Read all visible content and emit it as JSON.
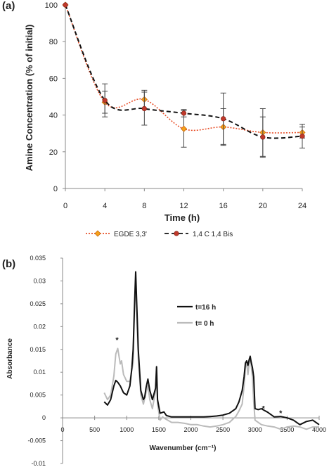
{
  "panel_a_label": "(a)",
  "panel_b_label": "(b)",
  "chart_data": [
    {
      "type": "line",
      "panel": "(a)",
      "xlabel": "Time (h)",
      "ylabel": "Amine Concentration (% of initial)",
      "xlim": [
        0,
        24
      ],
      "ylim": [
        0,
        100
      ],
      "x_ticks": [
        0,
        4,
        8,
        12,
        16,
        20,
        24
      ],
      "y_ticks": [
        0,
        20,
        40,
        60,
        80,
        100
      ],
      "grid": false,
      "legend_position": "bottom",
      "x": [
        0,
        4,
        8,
        12,
        16,
        20,
        24
      ],
      "series": [
        {
          "name": "EGDE 3,3'",
          "color": "#e8502a",
          "marker_color": "#f7a11a",
          "line_style": "dotted",
          "values": [
            100,
            47,
            48.5,
            32.5,
            33.5,
            30.5,
            30.5
          ],
          "error": [
            0,
            6,
            5,
            10,
            10,
            13,
            3
          ]
        },
        {
          "name": "1,4 C 1,4 Bis",
          "color": "#111111",
          "marker_color": "#c0392b",
          "line_style": "dashed",
          "values": [
            100,
            48,
            43.5,
            41,
            38,
            28,
            28.5
          ],
          "error": [
            0,
            9,
            9,
            2,
            14,
            11,
            6.5
          ]
        }
      ]
    },
    {
      "type": "line",
      "panel": "(b)",
      "xlabel": "Wavenumber (cm⁻¹)",
      "ylabel": "Absorbance",
      "xlim": [
        0,
        4000
      ],
      "ylim": [
        -0.01,
        0.035
      ],
      "x_ticks": [
        0,
        500,
        1000,
        1500,
        2000,
        2500,
        3000,
        3500,
        4000
      ],
      "y_tick_labels": [
        "-0.01",
        "-0.005",
        "0",
        "0.005",
        "0.01",
        "0.015",
        "0.02",
        "0.025",
        "0.03",
        "0.035"
      ],
      "grid": false,
      "legend_position": "top-right",
      "annotations": [
        {
          "text": "*",
          "x": 850,
          "y": 0.0165
        },
        {
          "text": "*",
          "x": 3130,
          "y": 0.0015
        },
        {
          "text": "*",
          "x": 3400,
          "y": 0.0005
        }
      ],
      "series": [
        {
          "name": "t=16 h",
          "color": "#111111",
          "x": [
            650,
            700,
            750,
            800,
            830,
            860,
            900,
            950,
            1000,
            1050,
            1080,
            1100,
            1120,
            1140,
            1180,
            1220,
            1260,
            1280,
            1300,
            1330,
            1360,
            1400,
            1450,
            1465,
            1480,
            1520,
            1560,
            1580,
            1620,
            1700,
            1800,
            1900,
            2000,
            2100,
            2200,
            2300,
            2400,
            2500,
            2600,
            2700,
            2750,
            2800,
            2830,
            2850,
            2870,
            2890,
            2910,
            2925,
            2940,
            2960,
            2980,
            3000,
            3050,
            3100,
            3150,
            3200,
            3300,
            3400,
            3500,
            3600,
            3700,
            3800,
            3900,
            4000
          ],
          "values": [
            0.0035,
            0.0028,
            0.004,
            0.007,
            0.0082,
            0.0078,
            0.007,
            0.0055,
            0.005,
            0.007,
            0.011,
            0.015,
            0.024,
            0.032,
            0.015,
            0.006,
            0.004,
            0.0045,
            0.0065,
            0.0085,
            0.006,
            0.004,
            0.0065,
            0.0112,
            0.004,
            0.001,
            0.0012,
            0.0013,
            0.0005,
            0.0002,
            0.0002,
            0.0002,
            0.0002,
            0.0002,
            0.0002,
            0.0003,
            0.0004,
            0.0006,
            0.001,
            0.002,
            0.0035,
            0.006,
            0.009,
            0.012,
            0.0125,
            0.0115,
            0.0128,
            0.0135,
            0.0122,
            0.011,
            0.009,
            0.002,
            0.0018,
            0.002,
            0.0016,
            0.0012,
            0.0002,
            0.0003,
            0.0,
            -0.0005,
            -0.0015,
            -0.0008,
            -0.0005,
            -0.0015
          ]
        },
        {
          "name": "t= 0 h",
          "color": "#bbbbbb",
          "x": [
            650,
            700,
            750,
            800,
            830,
            860,
            900,
            920,
            950,
            1000,
            1050,
            1080,
            1100,
            1120,
            1140,
            1180,
            1220,
            1260,
            1300,
            1330,
            1360,
            1400,
            1450,
            1465,
            1480,
            1520,
            1560,
            1600,
            1700,
            1800,
            1900,
            2000,
            2100,
            2200,
            2300,
            2400,
            2500,
            2600,
            2700,
            2750,
            2800,
            2830,
            2850,
            2870,
            2890,
            2910,
            2925,
            2940,
            2960,
            2980,
            3000,
            3050,
            3100,
            3200,
            3300,
            3400,
            3500,
            3600,
            3700,
            3800,
            3900,
            4000
          ],
          "values": [
            0.0055,
            0.004,
            0.005,
            0.0092,
            0.014,
            0.0152,
            0.0118,
            0.0125,
            0.0095,
            0.008,
            0.008,
            0.0105,
            0.012,
            0.023,
            0.03,
            0.013,
            0.005,
            0.003,
            0.0055,
            0.007,
            0.004,
            0.002,
            0.006,
            0.0095,
            0.003,
            -0.0005,
            0.0002,
            -0.0002,
            -0.001,
            -0.001,
            -0.0012,
            -0.0015,
            -0.0015,
            -0.0018,
            -0.002,
            -0.0018,
            -0.0015,
            -0.001,
            0.0003,
            0.0015,
            0.003,
            0.007,
            0.011,
            0.012,
            0.0095,
            0.012,
            0.013,
            0.0115,
            0.009,
            0.0035,
            -0.0005,
            -0.001,
            -0.0015,
            -0.0018,
            -0.002,
            -0.0025,
            -0.002,
            -0.0018,
            -0.002,
            -0.0025,
            -0.002,
            -0.002
          ]
        }
      ]
    }
  ]
}
